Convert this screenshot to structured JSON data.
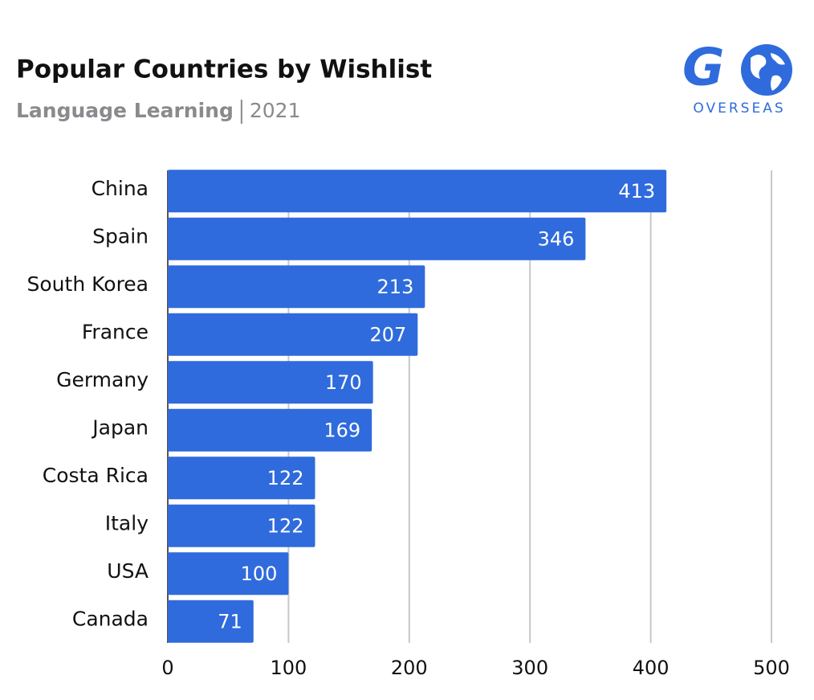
{
  "chart_data": {
    "type": "bar",
    "orientation": "horizontal",
    "title": "Popular Countries by Wishlist",
    "subtitle": "Language Learning",
    "subtitle_date": "2021",
    "logo": {
      "text": "G",
      "tagline": "OVERSEAS"
    },
    "categories": [
      "China",
      "Spain",
      "South Korea",
      "France",
      "Germany",
      "Japan",
      "Costa Rica",
      "Italy",
      "USA",
      "Canada"
    ],
    "values": [
      413,
      346,
      213,
      207,
      170,
      169,
      122,
      122,
      100,
      71
    ],
    "color": "#2f6bdc",
    "xlim": [
      0,
      500
    ],
    "xticks": [
      0,
      100,
      200,
      300,
      400,
      500
    ],
    "grid": true
  }
}
